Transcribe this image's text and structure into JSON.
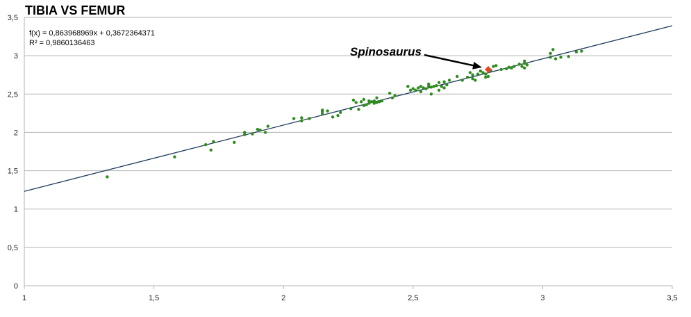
{
  "chart_data": {
    "type": "scatter",
    "title": "TIBIA VS FEMUR",
    "xlabel": "",
    "ylabel": "",
    "xlim": [
      1,
      3.5
    ],
    "ylim": [
      0,
      3.5
    ],
    "x_ticks": [
      "1",
      "1,5",
      "2",
      "2,5",
      "3",
      "3,5"
    ],
    "y_ticks": [
      "0",
      "0,5",
      "1",
      "1,5",
      "2",
      "2,5",
      "3",
      "3,5"
    ],
    "grid": "horizontal",
    "legend": "none",
    "regression": {
      "equation": "f(x) = 0,863968969x + 0,3672364371",
      "r_squared": "R² = 0,9860136463",
      "slope": 0.863968969,
      "intercept": 0.3672364371,
      "color": "#1f3b5c"
    },
    "point_color": "#2e8b1e",
    "highlight_color": "#e8442a",
    "series": [
      {
        "points": [
          [
            1.32,
            1.42
          ],
          [
            1.58,
            1.68
          ],
          [
            1.7,
            1.84
          ],
          [
            1.72,
            1.77
          ],
          [
            1.73,
            1.88
          ],
          [
            1.81,
            1.87
          ],
          [
            1.85,
            1.97
          ],
          [
            1.85,
            2.0
          ],
          [
            1.88,
            1.98
          ],
          [
            1.9,
            2.04
          ],
          [
            1.91,
            2.03
          ],
          [
            1.93,
            2.0
          ],
          [
            1.94,
            2.08
          ],
          [
            2.04,
            2.18
          ],
          [
            2.07,
            2.15
          ],
          [
            2.07,
            2.19
          ],
          [
            2.1,
            2.18
          ],
          [
            2.15,
            2.24
          ],
          [
            2.15,
            2.27
          ],
          [
            2.15,
            2.29
          ],
          [
            2.17,
            2.28
          ],
          [
            2.19,
            2.2
          ],
          [
            2.21,
            2.22
          ],
          [
            2.22,
            2.26
          ],
          [
            2.26,
            2.31
          ],
          [
            2.27,
            2.42
          ],
          [
            2.28,
            2.39
          ],
          [
            2.29,
            2.3
          ],
          [
            2.3,
            2.4
          ],
          [
            2.31,
            2.35
          ],
          [
            2.31,
            2.43
          ],
          [
            2.32,
            2.36
          ],
          [
            2.33,
            2.38
          ],
          [
            2.33,
            2.41
          ],
          [
            2.34,
            2.4
          ],
          [
            2.35,
            2.38
          ],
          [
            2.35,
            2.41
          ],
          [
            2.36,
            2.39
          ],
          [
            2.36,
            2.45
          ],
          [
            2.37,
            2.4
          ],
          [
            2.38,
            2.41
          ],
          [
            2.41,
            2.51
          ],
          [
            2.42,
            2.45
          ],
          [
            2.43,
            2.48
          ],
          [
            2.48,
            2.6
          ],
          [
            2.49,
            2.55
          ],
          [
            2.5,
            2.57
          ],
          [
            2.51,
            2.55
          ],
          [
            2.52,
            2.58
          ],
          [
            2.53,
            2.6
          ],
          [
            2.53,
            2.53
          ],
          [
            2.54,
            2.58
          ],
          [
            2.55,
            2.57
          ],
          [
            2.56,
            2.6
          ],
          [
            2.56,
            2.63
          ],
          [
            2.57,
            2.5
          ],
          [
            2.57,
            2.59
          ],
          [
            2.58,
            2.6
          ],
          [
            2.59,
            2.61
          ],
          [
            2.6,
            2.55
          ],
          [
            2.6,
            2.65
          ],
          [
            2.61,
            2.6
          ],
          [
            2.62,
            2.58
          ],
          [
            2.62,
            2.66
          ],
          [
            2.63,
            2.62
          ],
          [
            2.64,
            2.68
          ],
          [
            2.67,
            2.73
          ],
          [
            2.69,
            2.68
          ],
          [
            2.71,
            2.72
          ],
          [
            2.72,
            2.78
          ],
          [
            2.73,
            2.7
          ],
          [
            2.73,
            2.75
          ],
          [
            2.74,
            2.68
          ],
          [
            2.75,
            2.76
          ],
          [
            2.76,
            2.8
          ],
          [
            2.77,
            2.78
          ],
          [
            2.78,
            2.72
          ],
          [
            2.78,
            2.76
          ],
          [
            2.79,
            2.73
          ],
          [
            2.8,
            2.81
          ],
          [
            2.81,
            2.86
          ],
          [
            2.82,
            2.87
          ],
          [
            2.84,
            2.82
          ],
          [
            2.86,
            2.83
          ],
          [
            2.87,
            2.85
          ],
          [
            2.88,
            2.84
          ],
          [
            2.89,
            2.86
          ],
          [
            2.91,
            2.89
          ],
          [
            2.92,
            2.86
          ],
          [
            2.93,
            2.84
          ],
          [
            2.93,
            2.9
          ],
          [
            2.93,
            2.93
          ],
          [
            2.94,
            2.88
          ],
          [
            3.03,
            2.98
          ],
          [
            3.03,
            3.03
          ],
          [
            3.04,
            3.08
          ],
          [
            3.05,
            2.96
          ],
          [
            3.07,
            2.98
          ],
          [
            3.1,
            2.99
          ],
          [
            3.13,
            3.05
          ],
          [
            3.15,
            3.06
          ]
        ]
      },
      {
        "name": "Spinosaurus",
        "points": [
          [
            2.79,
            2.82
          ]
        ]
      }
    ]
  }
}
